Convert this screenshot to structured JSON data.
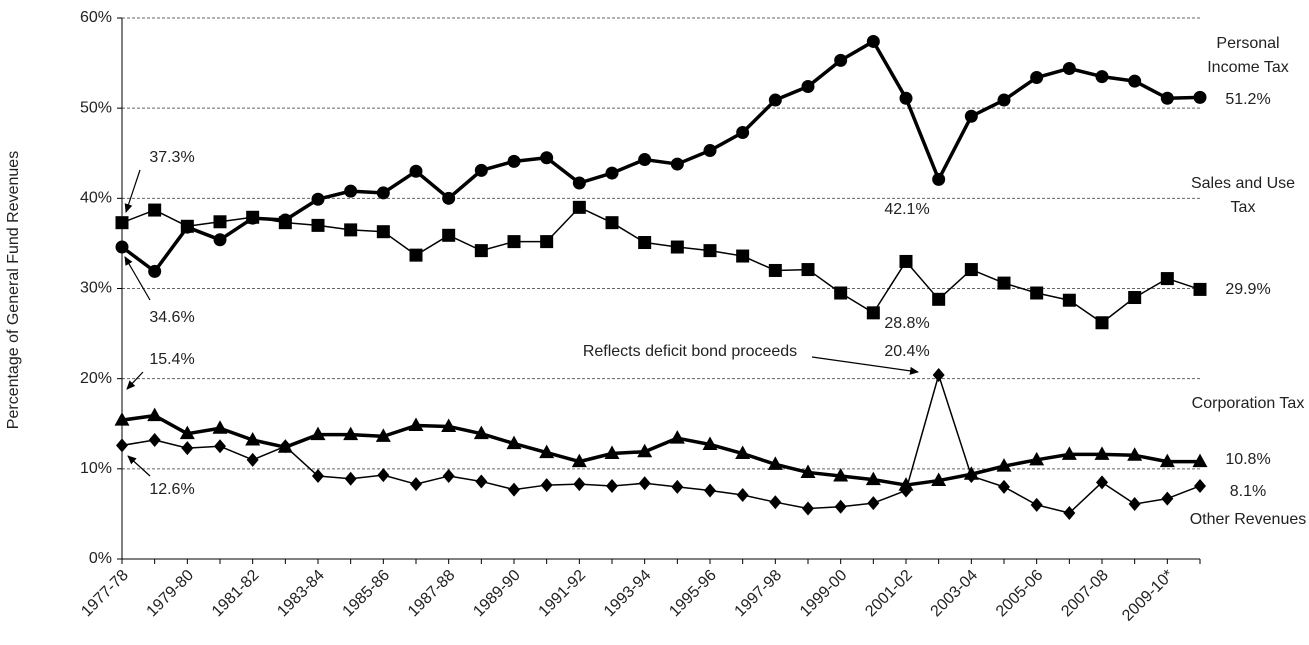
{
  "chart_data": {
    "type": "line",
    "y_label": "Percentage of General Fund Revenues",
    "categories": [
      "1977-78",
      null,
      "1979-80",
      null,
      "1981-82",
      null,
      "1983-84",
      null,
      "1985-86",
      null,
      "1987-88",
      null,
      "1989-90",
      null,
      "1991-92",
      null,
      "1993-94",
      null,
      "1995-96",
      null,
      "1997-98",
      null,
      "1999-00",
      null,
      "2001-02",
      null,
      "2003-04",
      null,
      "2005-06",
      null,
      "2007-08",
      null,
      "2009-10*",
      null
    ],
    "ylim": [
      0,
      60
    ],
    "yticks": [
      {
        "value": 0,
        "label": "0%"
      },
      {
        "value": 10,
        "label": "10%"
      },
      {
        "value": 20,
        "label": "20%"
      },
      {
        "value": 30,
        "label": "30%"
      },
      {
        "value": 40,
        "label": "40%"
      },
      {
        "value": 50,
        "label": "50%"
      },
      {
        "value": 60,
        "label": "60%"
      }
    ],
    "grid": true,
    "series": [
      {
        "name": "Personal Income Tax",
        "color": "#000000",
        "marker": "circle",
        "line_width": 3.5,
        "values": [
          34.6,
          31.9,
          36.8,
          35.4,
          37.8,
          37.6,
          39.9,
          40.8,
          40.6,
          43.0,
          40.0,
          43.1,
          44.1,
          44.5,
          41.7,
          42.8,
          44.3,
          43.8,
          45.3,
          47.3,
          50.9,
          52.4,
          55.3,
          57.4,
          51.1,
          42.1,
          49.1,
          50.9,
          53.4,
          54.4,
          53.5,
          53.0,
          51.1,
          51.2
        ],
        "value_labels": [
          "34.6%",
          null,
          null,
          null,
          null,
          null,
          null,
          null,
          null,
          null,
          null,
          null,
          null,
          null,
          null,
          null,
          null,
          null,
          null,
          null,
          null,
          null,
          null,
          null,
          null,
          "42.1%",
          null,
          null,
          null,
          null,
          null,
          null,
          null,
          "51.2%"
        ]
      },
      {
        "name": "Sales and Use Tax",
        "color": "#000000",
        "marker": "square",
        "line_width": 1.5,
        "values": [
          37.3,
          38.7,
          36.9,
          37.4,
          37.9,
          37.3,
          37.0,
          36.5,
          36.3,
          33.7,
          35.9,
          34.2,
          35.2,
          35.2,
          39.0,
          37.3,
          35.1,
          34.6,
          34.2,
          33.6,
          32.0,
          32.1,
          29.5,
          27.3,
          33.0,
          28.8,
          32.1,
          30.6,
          29.5,
          28.7,
          26.2,
          29.0,
          31.1,
          29.9
        ],
        "value_labels": [
          "37.3%",
          null,
          null,
          null,
          null,
          null,
          null,
          null,
          null,
          null,
          null,
          null,
          null,
          null,
          null,
          null,
          null,
          null,
          null,
          null,
          null,
          null,
          null,
          null,
          null,
          "28.8%",
          null,
          null,
          null,
          null,
          null,
          null,
          null,
          "29.9%"
        ]
      },
      {
        "name": "Corporation Tax",
        "color": "#000000",
        "marker": "triangle",
        "line_width": 3.5,
        "values": [
          15.4,
          15.9,
          13.9,
          14.5,
          13.2,
          12.4,
          13.8,
          13.8,
          13.6,
          14.8,
          14.7,
          13.9,
          12.8,
          11.8,
          10.8,
          11.7,
          11.9,
          13.4,
          12.7,
          11.7,
          10.5,
          9.6,
          9.2,
          8.8,
          8.2,
          8.7,
          9.4,
          10.3,
          11.0,
          11.6,
          11.6,
          11.5,
          10.8,
          10.8
        ],
        "value_labels": [
          "15.4%",
          null,
          null,
          null,
          null,
          null,
          null,
          null,
          null,
          null,
          null,
          null,
          null,
          null,
          null,
          null,
          null,
          null,
          null,
          null,
          null,
          null,
          null,
          null,
          null,
          null,
          null,
          null,
          null,
          null,
          null,
          null,
          null,
          "10.8%"
        ]
      },
      {
        "name": "Other Revenues",
        "color": "#000000",
        "marker": "diamond",
        "line_width": 1.5,
        "values": [
          12.6,
          13.2,
          12.3,
          12.5,
          11.0,
          12.5,
          9.2,
          8.9,
          9.3,
          8.3,
          9.2,
          8.6,
          7.7,
          8.2,
          8.3,
          8.1,
          8.4,
          8.0,
          7.6,
          7.1,
          6.3,
          5.6,
          5.8,
          6.2,
          7.6,
          20.4,
          9.2,
          8.0,
          6.0,
          5.1,
          8.5,
          6.1,
          6.7,
          8.1
        ],
        "value_labels": [
          "12.6%",
          null,
          null,
          null,
          null,
          null,
          null,
          null,
          null,
          null,
          null,
          null,
          null,
          null,
          null,
          null,
          null,
          null,
          null,
          null,
          null,
          null,
          null,
          null,
          null,
          "20.4%",
          null,
          null,
          null,
          null,
          null,
          null,
          null,
          "8.1%"
        ]
      }
    ],
    "annotation": "Reflects deficit bond proceeds"
  }
}
